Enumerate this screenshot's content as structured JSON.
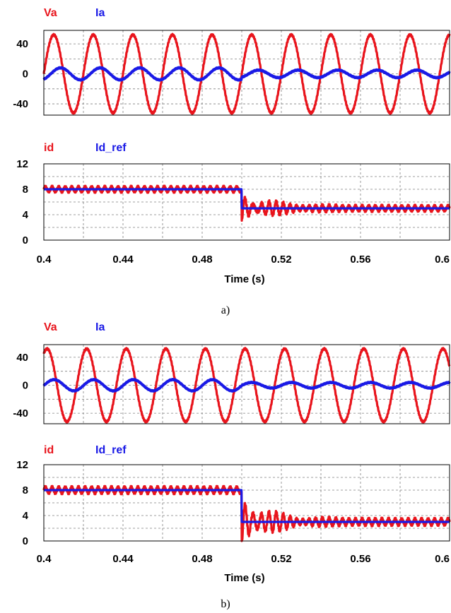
{
  "colors": {
    "red": "#e8141c",
    "blue": "#1a1ae6"
  },
  "captions": [
    "a)",
    "b)"
  ],
  "chart_data": [
    {
      "type": "line",
      "legend": [
        "Va",
        "Ia"
      ],
      "xlim": [
        0.4,
        0.605
      ],
      "ylim": [
        -55,
        58
      ],
      "yticks": [
        40,
        0,
        -40
      ],
      "series": [
        {
          "name": "Va",
          "kind": "sine",
          "amplitude": 52,
          "frequency_hz": 50,
          "phase_deg": 0
        },
        {
          "name": "Ia",
          "kind": "sine-step",
          "amplitude_before": 8,
          "amplitude_after": 5,
          "step_time": 0.5,
          "frequency_hz": 50,
          "phase_deg": 0
        }
      ]
    },
    {
      "type": "line",
      "legend": [
        "id",
        "Id_ref"
      ],
      "xlim": [
        0.4,
        0.605
      ],
      "ylim": [
        0,
        12
      ],
      "yticks": [
        12,
        8,
        4,
        0
      ],
      "xticks": [
        "0.4",
        "0.44",
        "0.48",
        "0.52",
        "0.56",
        "0.6"
      ],
      "xlabel": "Time (s)",
      "series": [
        {
          "name": "id",
          "kind": "step-response",
          "before": 8,
          "after": 5,
          "step_time": 0.5,
          "ripple": 0.4,
          "overshoot": 2.0
        },
        {
          "name": "Id_ref",
          "kind": "step",
          "before": 8,
          "after": 5,
          "step_time": 0.5
        }
      ]
    },
    {
      "type": "line",
      "legend": [
        "Va",
        "Ia"
      ],
      "xlim": [
        0.4,
        0.605
      ],
      "ylim": [
        -55,
        58
      ],
      "yticks": [
        40,
        0,
        -40
      ],
      "series": [
        {
          "name": "Va",
          "kind": "sine",
          "amplitude": 52,
          "frequency_hz": 50,
          "phase_deg": 60
        },
        {
          "name": "Ia",
          "kind": "sine-step",
          "amplitude_before": 8,
          "amplitude_after": 4,
          "step_time": 0.5,
          "frequency_hz": 50,
          "phase_deg": 60
        }
      ]
    },
    {
      "type": "line",
      "legend": [
        "id",
        "Id_ref"
      ],
      "xlim": [
        0.4,
        0.605
      ],
      "ylim": [
        0,
        12
      ],
      "yticks": [
        12,
        8,
        4,
        0
      ],
      "xticks": [
        "0.4",
        "0.44",
        "0.48",
        "0.52",
        "0.56",
        "0.6"
      ],
      "xlabel": "Time (s)",
      "series": [
        {
          "name": "id",
          "kind": "step-response",
          "before": 8,
          "after": 3,
          "step_time": 0.5,
          "ripple": 0.5,
          "overshoot": 3.5
        },
        {
          "name": "Id_ref",
          "kind": "step",
          "before": 8,
          "after": 3,
          "step_time": 0.5
        }
      ]
    }
  ]
}
